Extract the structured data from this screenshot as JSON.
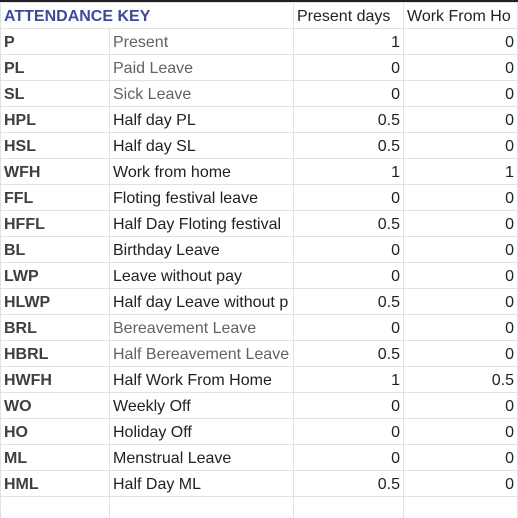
{
  "header": {
    "title": "ATTENDANCE KEY",
    "col_present": "Present days",
    "col_wfh": "Work From Ho"
  },
  "rows": [
    {
      "code": "P",
      "desc": "Present",
      "present": "1",
      "wfh": "0",
      "muted": true
    },
    {
      "code": "PL",
      "desc": "Paid Leave",
      "present": "0",
      "wfh": "0",
      "muted": true
    },
    {
      "code": "SL",
      "desc": "Sick Leave",
      "present": "0",
      "wfh": "0",
      "muted": true
    },
    {
      "code": "HPL",
      "desc": "Half day PL",
      "present": "0.5",
      "wfh": "0",
      "muted": false
    },
    {
      "code": "HSL",
      "desc": "Half day SL",
      "present": "0.5",
      "wfh": "0",
      "muted": false
    },
    {
      "code": "WFH",
      "desc": "Work from home",
      "present": "1",
      "wfh": "1",
      "muted": false
    },
    {
      "code": "FFL",
      "desc": "Floting festival leave",
      "present": "0",
      "wfh": "0",
      "muted": false
    },
    {
      "code": "HFFL",
      "desc": "Half Day Floting festival",
      "present": "0.5",
      "wfh": "0",
      "muted": false
    },
    {
      "code": "BL",
      "desc": "Birthday Leave",
      "present": "0",
      "wfh": "0",
      "muted": false
    },
    {
      "code": "LWP",
      "desc": "Leave without pay",
      "present": "0",
      "wfh": "0",
      "muted": false
    },
    {
      "code": "HLWP",
      "desc": "Half day Leave without p",
      "present": "0.5",
      "wfh": "0",
      "muted": false
    },
    {
      "code": "BRL",
      "desc": "Bereavement Leave",
      "present": "0",
      "wfh": "0",
      "muted": true
    },
    {
      "code": "HBRL",
      "desc": "Half Bereavement Leave",
      "present": "0.5",
      "wfh": "0",
      "muted": true
    },
    {
      "code": "HWFH",
      "desc": "Half Work From Home",
      "present": "1",
      "wfh": "0.5",
      "muted": false
    },
    {
      "code": "WO",
      "desc": "Weekly Off",
      "present": "0",
      "wfh": "0",
      "muted": false
    },
    {
      "code": "HO",
      "desc": "Holiday Off",
      "present": "0",
      "wfh": "0",
      "muted": false
    },
    {
      "code": "ML",
      "desc": "Menstrual Leave",
      "present": "0",
      "wfh": "0",
      "muted": false
    },
    {
      "code": "HML",
      "desc": "Half Day ML",
      "present": "0.5",
      "wfh": "0",
      "muted": false
    }
  ],
  "colors": {
    "title": "#3b4a99",
    "grid": "#e2e2e2",
    "muted_text": "#5f6368"
  }
}
